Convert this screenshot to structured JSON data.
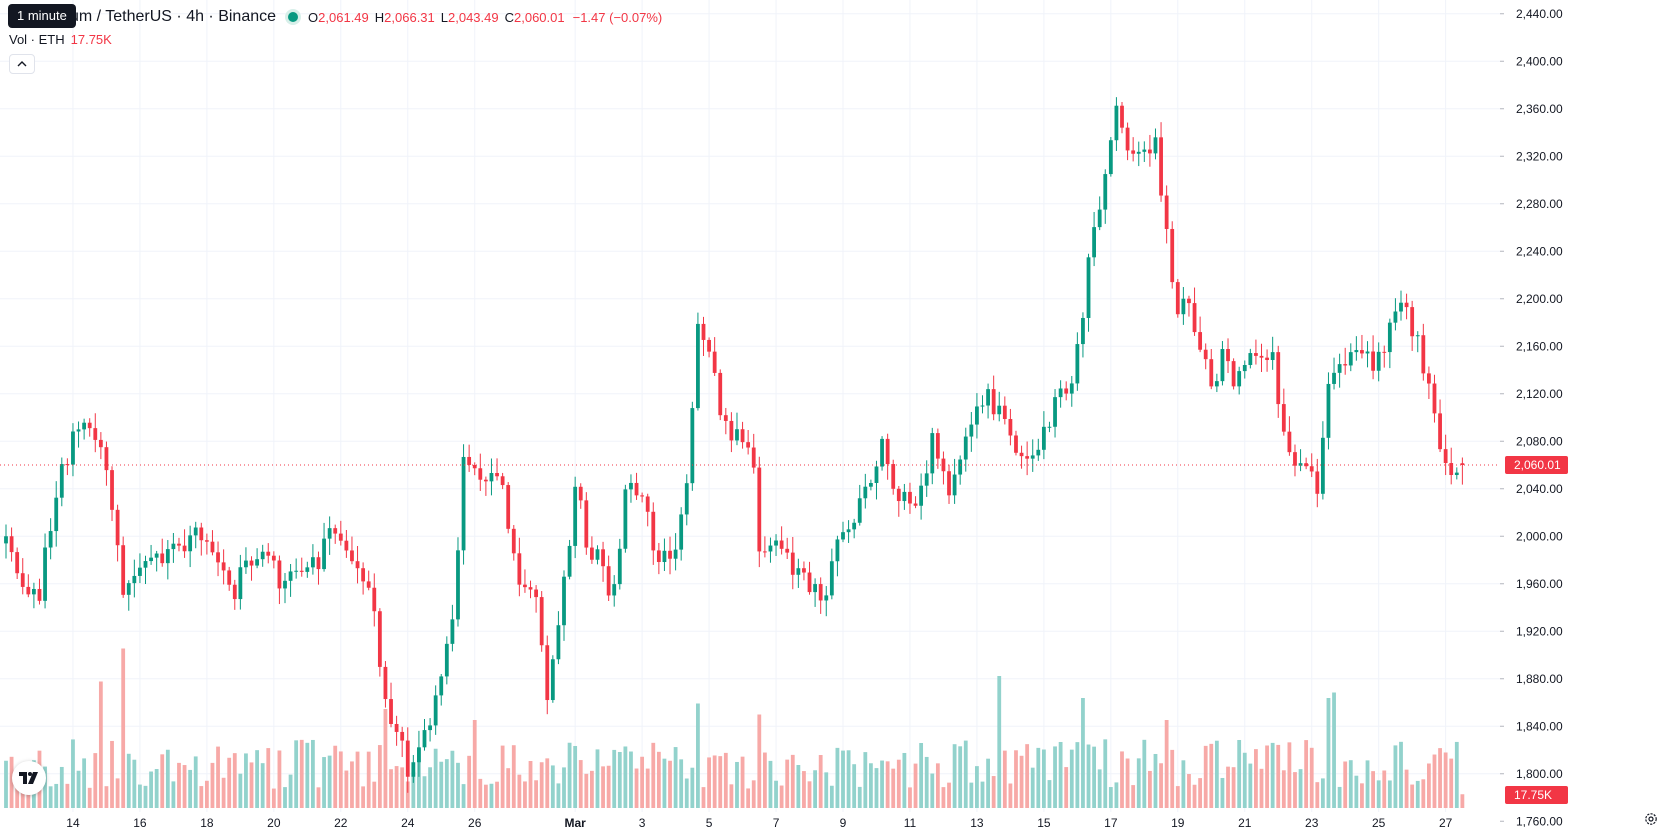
{
  "header": {
    "tooltip": "1 minute",
    "symbol": "um / TetherUS · 4h · Binance",
    "open_label": "O",
    "open": "2,061.49",
    "high_label": "H",
    "high": "2,066.31",
    "low_label": "L",
    "low": "2,043.49",
    "close_label": "C",
    "close": "2,060.01",
    "change": "−1.47 (−0.07%)",
    "vol_label": "Vol · ETH",
    "vol_value": "17.75K"
  },
  "colors": {
    "up": "#089981",
    "down": "#f23645",
    "up_volume": "#92d2cc",
    "down_volume": "#f7a9a7",
    "grid": "#f0f3fa",
    "axis_text": "#131722"
  },
  "icons": {
    "collapse": "chevron-up-icon",
    "logo": "tradingview-logo",
    "settings": "gear-icon"
  },
  "chart_data": {
    "type": "candlestick",
    "title": "um / TetherUS · 4h · Binance",
    "interval": "4h",
    "price_axis": {
      "range": [
        1740,
        2460
      ],
      "ticks": [
        1760,
        1800,
        1840,
        1880,
        1920,
        1960,
        2000,
        2040,
        2080,
        2120,
        2160,
        2200,
        2240,
        2280,
        2320,
        2360,
        2400,
        2440
      ],
      "tick_labels": [
        "1,760.00",
        "1,800.00",
        "1,840.00",
        "1,880.00",
        "1,920.00",
        "1,960.00",
        "2,000.00",
        "2,040.00",
        "2,080.00",
        "2,120.00",
        "2,160.00",
        "2,200.00",
        "2,240.00",
        "2,280.00",
        "2,320.00",
        "2,360.00",
        "2,400.00",
        "2,440.00"
      ]
    },
    "time_axis": {
      "ticks": [
        {
          "label": "14",
          "bar": 12
        },
        {
          "label": "16",
          "bar": 24
        },
        {
          "label": "18",
          "bar": 36
        },
        {
          "label": "20",
          "bar": 48
        },
        {
          "label": "22",
          "bar": 60
        },
        {
          "label": "24",
          "bar": 72
        },
        {
          "label": "26",
          "bar": 84
        },
        {
          "label": "Mar",
          "bar": 102
        },
        {
          "label": "3",
          "bar": 114
        },
        {
          "label": "5",
          "bar": 126
        },
        {
          "label": "7",
          "bar": 138
        },
        {
          "label": "9",
          "bar": 150
        },
        {
          "label": "11",
          "bar": 162
        },
        {
          "label": "13",
          "bar": 174
        },
        {
          "label": "15",
          "bar": 186
        },
        {
          "label": "17",
          "bar": 198
        },
        {
          "label": "19",
          "bar": 210
        },
        {
          "label": "21",
          "bar": 222
        },
        {
          "label": "23",
          "bar": 234
        },
        {
          "label": "25",
          "bar": 246
        },
        {
          "label": "27",
          "bar": 258
        }
      ]
    },
    "last_price": {
      "value": 2060.01,
      "label": "2,060.01"
    },
    "last_volume_label": "17.75K",
    "anchors": [
      {
        "bar": 0,
        "close": 2000
      },
      {
        "bar": 3,
        "close": 1965
      },
      {
        "bar": 6,
        "close": 1955
      },
      {
        "bar": 9,
        "close": 2040
      },
      {
        "bar": 13,
        "close": 2090
      },
      {
        "bar": 17,
        "close": 2085
      },
      {
        "bar": 21,
        "close": 1960
      },
      {
        "bar": 26,
        "close": 1990
      },
      {
        "bar": 30,
        "close": 1985
      },
      {
        "bar": 36,
        "close": 2005
      },
      {
        "bar": 40,
        "close": 1950
      },
      {
        "bar": 45,
        "close": 1985
      },
      {
        "bar": 50,
        "close": 1960
      },
      {
        "bar": 55,
        "close": 1975
      },
      {
        "bar": 58,
        "close": 2000
      },
      {
        "bar": 61,
        "close": 1985
      },
      {
        "bar": 65,
        "close": 1960
      },
      {
        "bar": 68,
        "close": 1870
      },
      {
        "bar": 72,
        "close": 1800
      },
      {
        "bar": 76,
        "close": 1840
      },
      {
        "bar": 80,
        "close": 1920
      },
      {
        "bar": 82,
        "close": 2060
      },
      {
        "bar": 86,
        "close": 2050
      },
      {
        "bar": 89,
        "close": 2040
      },
      {
        "bar": 92,
        "close": 1960
      },
      {
        "bar": 95,
        "close": 1940
      },
      {
        "bar": 97,
        "close": 1860
      },
      {
        "bar": 100,
        "close": 1960
      },
      {
        "bar": 102,
        "close": 2040
      },
      {
        "bar": 104,
        "close": 2000
      },
      {
        "bar": 107,
        "close": 1970
      },
      {
        "bar": 109,
        "close": 1950
      },
      {
        "bar": 111,
        "close": 2050
      },
      {
        "bar": 114,
        "close": 2030
      },
      {
        "bar": 117,
        "close": 1980
      },
      {
        "bar": 120,
        "close": 1980
      },
      {
        "bar": 122,
        "close": 2050
      },
      {
        "bar": 124,
        "close": 2180
      },
      {
        "bar": 128,
        "close": 2110
      },
      {
        "bar": 131,
        "close": 2080
      },
      {
        "bar": 134,
        "close": 2060
      },
      {
        "bar": 135,
        "close": 1990
      },
      {
        "bar": 138,
        "close": 2000
      },
      {
        "bar": 142,
        "close": 1970
      },
      {
        "bar": 146,
        "close": 1945
      },
      {
        "bar": 149,
        "close": 1990
      },
      {
        "bar": 153,
        "close": 2030
      },
      {
        "bar": 157,
        "close": 2080
      },
      {
        "bar": 160,
        "close": 2030
      },
      {
        "bar": 163,
        "close": 2020
      },
      {
        "bar": 166,
        "close": 2080
      },
      {
        "bar": 169,
        "close": 2030
      },
      {
        "bar": 172,
        "close": 2080
      },
      {
        "bar": 175,
        "close": 2120
      },
      {
        "bar": 179,
        "close": 2100
      },
      {
        "bar": 182,
        "close": 2070
      },
      {
        "bar": 185,
        "close": 2080
      },
      {
        "bar": 188,
        "close": 2110
      },
      {
        "bar": 191,
        "close": 2130
      },
      {
        "bar": 193,
        "close": 2190
      },
      {
        "bar": 195,
        "close": 2260
      },
      {
        "bar": 197,
        "close": 2300
      },
      {
        "bar": 199,
        "close": 2355
      },
      {
        "bar": 201,
        "close": 2320
      },
      {
        "bar": 204,
        "close": 2335
      },
      {
        "bar": 206,
        "close": 2330
      },
      {
        "bar": 208,
        "close": 2260
      },
      {
        "bar": 210,
        "close": 2190
      },
      {
        "bar": 212,
        "close": 2200
      },
      {
        "bar": 214,
        "close": 2150
      },
      {
        "bar": 216,
        "close": 2130
      },
      {
        "bar": 218,
        "close": 2150
      },
      {
        "bar": 221,
        "close": 2130
      },
      {
        "bar": 224,
        "close": 2155
      },
      {
        "bar": 227,
        "close": 2155
      },
      {
        "bar": 229,
        "close": 2080
      },
      {
        "bar": 232,
        "close": 2060
      },
      {
        "bar": 235,
        "close": 2040
      },
      {
        "bar": 237,
        "close": 2130
      },
      {
        "bar": 240,
        "close": 2150
      },
      {
        "bar": 243,
        "close": 2160
      },
      {
        "bar": 245,
        "close": 2135
      },
      {
        "bar": 248,
        "close": 2170
      },
      {
        "bar": 250,
        "close": 2190
      },
      {
        "bar": 253,
        "close": 2170
      },
      {
        "bar": 255,
        "close": 2120
      },
      {
        "bar": 257,
        "close": 2065
      },
      {
        "bar": 259,
        "close": 2050
      },
      {
        "bar": 261,
        "close": 2060.01
      }
    ],
    "volume_spikes": [
      {
        "bar": 17,
        "size": 2.3
      },
      {
        "bar": 21,
        "size": 2.9
      },
      {
        "bar": 68,
        "size": 1.8
      },
      {
        "bar": 84,
        "size": 1.6
      },
      {
        "bar": 124,
        "size": 1.9
      },
      {
        "bar": 135,
        "size": 1.7
      },
      {
        "bar": 178,
        "size": 2.4
      },
      {
        "bar": 193,
        "size": 2.0
      },
      {
        "bar": 208,
        "size": 1.6
      },
      {
        "bar": 237,
        "size": 2.0
      },
      {
        "bar": 238,
        "size": 2.1
      }
    ]
  }
}
